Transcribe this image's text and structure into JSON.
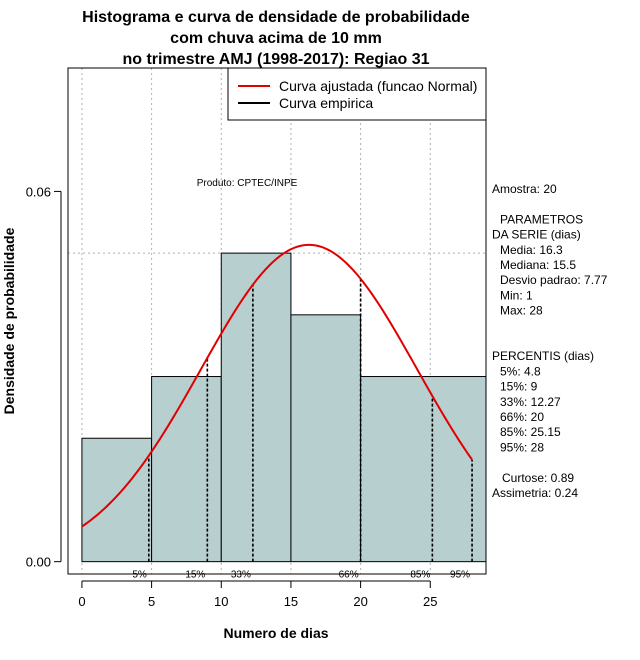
{
  "chart_data": {
    "type": "bar",
    "title_lines": [
      "Histograma e curva de densidade de probabilidade",
      "com chuva acima de 10 mm",
      "no trimestre AMJ (1998-2017): Regiao 31"
    ],
    "xlabel": "Numero de dias",
    "ylabel": "Densidade de probabilidade",
    "xlim": [
      -1,
      29
    ],
    "ylim": [
      -0.002,
      0.08
    ],
    "x_ticks": [
      0,
      5,
      10,
      15,
      20,
      25
    ],
    "x_tick_labels": [
      "0",
      "5",
      "10",
      "15",
      "20",
      "25"
    ],
    "y_ticks": [
      0.0,
      0.06
    ],
    "y_tick_labels": [
      "0.00",
      "0.06"
    ],
    "bars": [
      {
        "x0": 0,
        "x1": 5,
        "density": 0.02
      },
      {
        "x0": 5,
        "x1": 10,
        "density": 0.03
      },
      {
        "x0": 10,
        "x1": 15,
        "density": 0.05
      },
      {
        "x0": 15,
        "x1": 20,
        "density": 0.04
      },
      {
        "x0": 20,
        "x1": 29,
        "density": 0.03
      }
    ],
    "reference_line_y": 0.05,
    "normal_curve": {
      "mean": 16.3,
      "sd": 7.77,
      "from": 0,
      "to": 28
    },
    "legend": [
      {
        "label": "Curva ajustada (funcao Normal)",
        "color": "#e00000"
      },
      {
        "label": "Curva empirica",
        "color": "#000000"
      }
    ],
    "annotation": "Produto: CPTEC/INPE",
    "percentile_marks": [
      {
        "label": "5%",
        "value": 4.8
      },
      {
        "label": "15%",
        "value": 9
      },
      {
        "label": "33%",
        "value": 12.27
      },
      {
        "label": "66%",
        "value": 20
      },
      {
        "label": "85%",
        "value": 25.15
      },
      {
        "label": "95%",
        "value": 28
      }
    ],
    "stats_lines": [
      "Amostra: 20",
      "",
      "PARAMETROS",
      "DA SERIE (dias)",
      "Media: 16.3",
      "Mediana: 15.5",
      "Desvio padrao: 7.77",
      "Min: 1",
      "Max: 28",
      "",
      "",
      "PERCENTIS (dias)",
      "5%: 4.8",
      "15%: 9",
      "33%: 12.27",
      "66%: 20",
      "85%: 25.15",
      "95%: 28",
      "",
      "Curtose: 0.89",
      "Assimetria: 0.24"
    ],
    "colors": {
      "bar_fill": "#b8cfcf",
      "curve": "#e00000",
      "grid": "#b0b0b0"
    }
  }
}
